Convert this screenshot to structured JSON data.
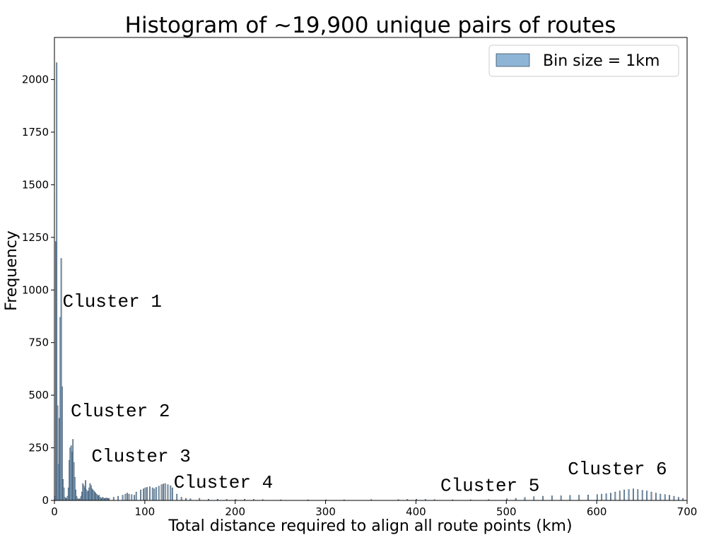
{
  "chart_data": {
    "type": "bar",
    "title": "Histogram of ~19,900 unique pairs of routes",
    "xlabel": "Total distance required to align all route points (km)",
    "ylabel": "Frequency",
    "xlim": [
      0,
      700
    ],
    "ylim": [
      0,
      2200
    ],
    "xticks": [
      0,
      100,
      200,
      300,
      400,
      500,
      600,
      700
    ],
    "yticks": [
      0,
      250,
      500,
      750,
      1000,
      1250,
      1500,
      1750,
      2000
    ],
    "bin_size_km": 1,
    "grid": false,
    "legend": {
      "position": "top-right",
      "entries": [
        "Bin size = 1km"
      ]
    },
    "colors": {
      "bar_fill": "#8fb5d6",
      "bar_edge": "#2c3e50"
    },
    "series": [
      {
        "name": "Bin size = 1km",
        "bins_start_km": [
          0,
          1,
          2,
          3,
          4,
          5,
          6,
          7,
          8,
          9,
          10,
          11,
          12,
          13,
          14,
          15,
          16,
          17,
          18,
          19,
          20,
          21,
          22,
          23,
          24,
          25,
          26,
          27,
          28,
          29,
          30,
          31,
          32,
          33,
          34,
          35,
          36,
          37,
          38,
          39,
          40,
          41,
          42,
          43,
          44,
          45,
          46,
          47,
          48,
          49,
          50,
          51,
          52,
          53,
          54,
          55,
          56,
          57,
          58,
          59,
          60,
          65,
          70,
          75,
          78,
          80,
          82,
          85,
          88,
          90,
          95,
          98,
          100,
          102,
          105,
          108,
          110,
          112,
          115,
          118,
          120,
          122,
          125,
          128,
          130,
          135,
          140,
          145,
          150,
          160,
          170,
          180,
          190,
          200,
          210,
          220,
          230,
          250,
          280,
          300,
          320,
          350,
          380,
          390,
          400,
          410,
          420,
          440,
          460,
          480,
          500,
          510,
          520,
          530,
          540,
          550,
          560,
          570,
          580,
          590,
          600,
          605,
          610,
          615,
          620,
          625,
          630,
          635,
          640,
          645,
          650,
          655,
          660,
          665,
          670,
          675,
          680,
          685,
          690,
          695
        ],
        "values": [
          20,
          1230,
          2080,
          450,
          170,
          390,
          870,
          1150,
          540,
          100,
          60,
          15,
          10,
          10,
          20,
          60,
          190,
          250,
          260,
          230,
          290,
          180,
          110,
          50,
          20,
          10,
          5,
          5,
          10,
          20,
          40,
          80,
          70,
          60,
          95,
          50,
          40,
          45,
          60,
          80,
          70,
          55,
          50,
          45,
          40,
          35,
          30,
          25,
          20,
          25,
          15,
          10,
          10,
          15,
          10,
          8,
          10,
          12,
          10,
          8,
          10,
          15,
          20,
          25,
          30,
          35,
          30,
          28,
          25,
          40,
          50,
          55,
          60,
          62,
          65,
          60,
          55,
          62,
          68,
          75,
          78,
          80,
          75,
          70,
          60,
          30,
          15,
          10,
          8,
          10,
          6,
          6,
          5,
          5,
          6,
          5,
          4,
          3,
          3,
          3,
          3,
          4,
          4,
          5,
          6,
          5,
          4,
          3,
          3,
          4,
          8,
          10,
          14,
          18,
          20,
          22,
          22,
          24,
          25,
          26,
          28,
          30,
          32,
          35,
          40,
          45,
          50,
          52,
          55,
          52,
          48,
          45,
          40,
          35,
          30,
          28,
          25,
          20,
          15,
          10
        ]
      }
    ],
    "annotations": [
      {
        "text": "Cluster 1",
        "x": 9,
        "y": 920
      },
      {
        "text": "Cluster 2",
        "x": 18,
        "y": 400
      },
      {
        "text": "Cluster 3",
        "x": 41,
        "y": 185
      },
      {
        "text": "Cluster 4",
        "x": 132,
        "y": 60
      },
      {
        "text": "Cluster 5",
        "x": 427,
        "y": 45
      },
      {
        "text": "Cluster 6",
        "x": 568,
        "y": 125
      }
    ]
  }
}
